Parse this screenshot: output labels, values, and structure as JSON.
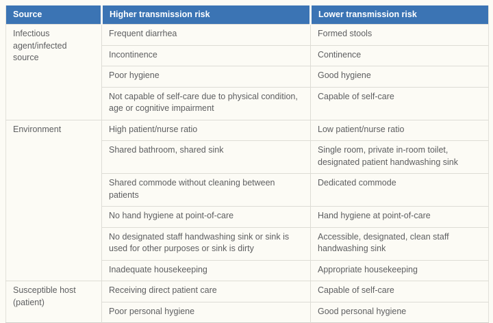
{
  "page": {
    "background_color": "#fcfbf5",
    "accent_color": "#3b74b4",
    "grid_color": "#dddcd5",
    "body_text_color": "#5d5e60"
  },
  "table": {
    "header": {
      "columns": [
        "Source",
        "Higher transmission risk",
        "Lower transmission risk"
      ]
    },
    "groups": [
      {
        "source": "Infectious agent/infected source",
        "rows": [
          {
            "higher": "Frequent diarrhea",
            "lower": "Formed stools"
          },
          {
            "higher": "Incontinence",
            "lower": "Continence"
          },
          {
            "higher": "Poor hygiene",
            "lower": "Good hygiene"
          },
          {
            "higher": "Not capable of self-care due to physical condition, age or cognitive impairment",
            "lower": "Capable of self-care"
          }
        ]
      },
      {
        "source": "Environment",
        "rows": [
          {
            "higher": "High patient/nurse ratio",
            "lower": "Low patient/nurse ratio"
          },
          {
            "higher": "Shared bathroom, shared sink",
            "lower": "Single room, private in-room toilet, designated patient handwashing sink"
          },
          {
            "higher": "Shared commode without cleaning between patients",
            "lower": "Dedicated commode"
          },
          {
            "higher": "No hand hygiene at point-of-care",
            "lower": "Hand hygiene at point-of-care"
          },
          {
            "higher": "No designated staff handwashing sink or sink is used for other purposes or sink is dirty",
            "lower": "Accessible, designated, clean staff handwashing sink"
          },
          {
            "higher": "Inadequate housekeeping",
            "lower": "Appropriate housekeeping"
          }
        ]
      },
      {
        "source": "Susceptible host (patient)",
        "rows": [
          {
            "higher": "Receiving direct patient care",
            "lower": "Capable of self-care"
          },
          {
            "higher": "Poor personal hygiene",
            "lower": "Good personal hygiene"
          }
        ]
      }
    ]
  }
}
